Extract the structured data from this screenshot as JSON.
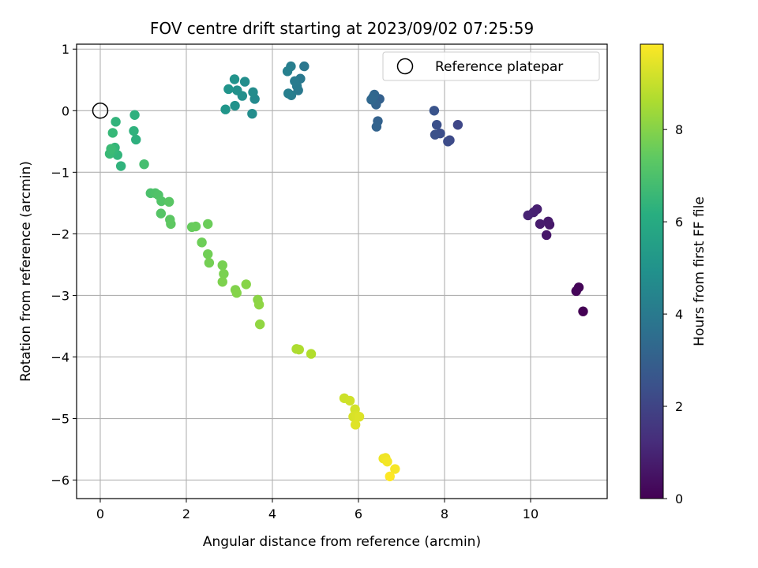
{
  "chart_data": {
    "type": "scatter",
    "title": "FOV centre drift starting at 2023/09/02 07:25:59",
    "xlabel": "Angular distance from reference (arcmin)",
    "ylabel": "Rotation from reference (arcmin)",
    "xlim": [
      -0.55,
      11.78
    ],
    "ylim": [
      -6.3,
      1.08
    ],
    "xticks": [
      0,
      2,
      4,
      6,
      8,
      10
    ],
    "yticks": [
      1,
      0,
      -1,
      -2,
      -3,
      -4,
      -5,
      -6
    ],
    "xtick_labels": [
      "0",
      "2",
      "4",
      "6",
      "8",
      "10"
    ],
    "ytick_labels": [
      "1",
      "0",
      "−1",
      "−2",
      "−3",
      "−4",
      "−5",
      "−6"
    ],
    "grid": true,
    "legend": {
      "position": "top-right",
      "entries": [
        "Reference platepar"
      ]
    },
    "reference_point": {
      "x": 0,
      "y": 0,
      "label": "Reference platepar"
    },
    "colorbar": {
      "label": "Hours from first FF file",
      "min": 0,
      "max": 9.85,
      "ticks": [
        0,
        2,
        4,
        6,
        8
      ],
      "colormap": "viridis"
    },
    "points": [
      {
        "x": 11.22,
        "y": -3.26,
        "c": 0.0
      },
      {
        "x": 11.12,
        "y": -2.87,
        "c": 0.1
      },
      {
        "x": 11.06,
        "y": -2.93,
        "c": 0.15
      },
      {
        "x": 10.37,
        "y": -2.02,
        "c": 0.6
      },
      {
        "x": 10.44,
        "y": -1.85,
        "c": 0.65
      },
      {
        "x": 10.41,
        "y": -1.8,
        "c": 0.7
      },
      {
        "x": 10.22,
        "y": -1.84,
        "c": 0.75
      },
      {
        "x": 10.15,
        "y": -1.6,
        "c": 0.85
      },
      {
        "x": 10.07,
        "y": -1.65,
        "c": 0.9
      },
      {
        "x": 9.94,
        "y": -1.7,
        "c": 0.95
      },
      {
        "x": 8.31,
        "y": -0.23,
        "c": 2.1
      },
      {
        "x": 8.12,
        "y": -0.48,
        "c": 2.2
      },
      {
        "x": 8.08,
        "y": -0.5,
        "c": 2.25
      },
      {
        "x": 7.9,
        "y": -0.37,
        "c": 2.35
      },
      {
        "x": 7.82,
        "y": -0.23,
        "c": 2.4
      },
      {
        "x": 7.78,
        "y": -0.39,
        "c": 2.45
      },
      {
        "x": 7.76,
        "y": 0.0,
        "c": 2.55
      },
      {
        "x": 6.49,
        "y": 0.19,
        "c": 3.0
      },
      {
        "x": 6.45,
        "y": -0.17,
        "c": 3.05
      },
      {
        "x": 6.42,
        "y": -0.26,
        "c": 3.1
      },
      {
        "x": 6.41,
        "y": 0.1,
        "c": 3.15
      },
      {
        "x": 6.37,
        "y": 0.26,
        "c": 3.2
      },
      {
        "x": 6.34,
        "y": 0.22,
        "c": 3.25
      },
      {
        "x": 6.3,
        "y": 0.18,
        "c": 3.3
      },
      {
        "x": 4.74,
        "y": 0.72,
        "c": 3.9
      },
      {
        "x": 4.65,
        "y": 0.52,
        "c": 3.95
      },
      {
        "x": 4.6,
        "y": 0.33,
        "c": 4.0
      },
      {
        "x": 4.57,
        "y": 0.4,
        "c": 4.05
      },
      {
        "x": 4.52,
        "y": 0.48,
        "c": 4.1
      },
      {
        "x": 4.44,
        "y": 0.25,
        "c": 4.15
      },
      {
        "x": 4.43,
        "y": 0.72,
        "c": 4.2
      },
      {
        "x": 4.37,
        "y": 0.28,
        "c": 4.25
      },
      {
        "x": 4.35,
        "y": 0.64,
        "c": 4.3
      },
      {
        "x": 3.59,
        "y": 0.19,
        "c": 4.7
      },
      {
        "x": 3.55,
        "y": 0.3,
        "c": 4.75
      },
      {
        "x": 3.53,
        "y": -0.05,
        "c": 4.8
      },
      {
        "x": 3.36,
        "y": 0.47,
        "c": 4.85
      },
      {
        "x": 3.3,
        "y": 0.24,
        "c": 4.9
      },
      {
        "x": 3.18,
        "y": 0.33,
        "c": 4.95
      },
      {
        "x": 3.13,
        "y": 0.08,
        "c": 5.0
      },
      {
        "x": 3.12,
        "y": 0.51,
        "c": 5.05
      },
      {
        "x": 2.98,
        "y": 0.35,
        "c": 5.1
      },
      {
        "x": 2.91,
        "y": 0.02,
        "c": 5.15
      },
      {
        "x": 0.83,
        "y": -0.47,
        "c": 6.2
      },
      {
        "x": 0.8,
        "y": -0.07,
        "c": 6.25
      },
      {
        "x": 0.78,
        "y": -0.33,
        "c": 6.3
      },
      {
        "x": 0.48,
        "y": -0.9,
        "c": 6.35
      },
      {
        "x": 0.36,
        "y": -0.18,
        "c": 6.4
      },
      {
        "x": 0.4,
        "y": -0.72,
        "c": 6.45
      },
      {
        "x": 0.34,
        "y": -0.6,
        "c": 6.5
      },
      {
        "x": 0.3,
        "y": -0.65,
        "c": 6.55
      },
      {
        "x": 0.29,
        "y": -0.36,
        "c": 6.6
      },
      {
        "x": 0.22,
        "y": -0.7,
        "c": 6.65
      },
      {
        "x": 0.25,
        "y": -0.62,
        "c": 6.7
      },
      {
        "x": 1.02,
        "y": -0.87,
        "c": 6.9
      },
      {
        "x": 1.17,
        "y": -1.34,
        "c": 7.0
      },
      {
        "x": 1.28,
        "y": -1.34,
        "c": 7.05
      },
      {
        "x": 1.35,
        "y": -1.37,
        "c": 7.1
      },
      {
        "x": 1.42,
        "y": -1.47,
        "c": 7.15
      },
      {
        "x": 1.41,
        "y": -1.67,
        "c": 7.2
      },
      {
        "x": 1.6,
        "y": -1.48,
        "c": 7.25
      },
      {
        "x": 1.62,
        "y": -1.77,
        "c": 7.3
      },
      {
        "x": 1.64,
        "y": -1.84,
        "c": 7.35
      },
      {
        "x": 2.13,
        "y": -1.89,
        "c": 7.5
      },
      {
        "x": 2.22,
        "y": -1.88,
        "c": 7.55
      },
      {
        "x": 2.5,
        "y": -1.84,
        "c": 7.6
      },
      {
        "x": 2.36,
        "y": -2.14,
        "c": 7.65
      },
      {
        "x": 2.5,
        "y": -2.33,
        "c": 7.7
      },
      {
        "x": 2.53,
        "y": -2.47,
        "c": 7.75
      },
      {
        "x": 2.84,
        "y": -2.51,
        "c": 7.8
      },
      {
        "x": 2.87,
        "y": -2.65,
        "c": 7.85
      },
      {
        "x": 2.84,
        "y": -2.78,
        "c": 7.9
      },
      {
        "x": 3.14,
        "y": -2.91,
        "c": 7.95
      },
      {
        "x": 3.17,
        "y": -2.96,
        "c": 8.0
      },
      {
        "x": 3.39,
        "y": -2.82,
        "c": 8.05
      },
      {
        "x": 3.66,
        "y": -3.07,
        "c": 8.1
      },
      {
        "x": 3.69,
        "y": -3.15,
        "c": 8.15
      },
      {
        "x": 3.71,
        "y": -3.47,
        "c": 8.2
      },
      {
        "x": 4.56,
        "y": -3.87,
        "c": 8.6
      },
      {
        "x": 4.62,
        "y": -3.88,
        "c": 8.65
      },
      {
        "x": 4.9,
        "y": -3.95,
        "c": 8.7
      },
      {
        "x": 5.67,
        "y": -4.67,
        "c": 9.1
      },
      {
        "x": 5.8,
        "y": -4.71,
        "c": 9.15
      },
      {
        "x": 5.92,
        "y": -4.85,
        "c": 9.2
      },
      {
        "x": 5.88,
        "y": -4.97,
        "c": 9.25
      },
      {
        "x": 5.95,
        "y": -4.95,
        "c": 9.3
      },
      {
        "x": 6.02,
        "y": -4.97,
        "c": 9.35
      },
      {
        "x": 5.93,
        "y": -5.1,
        "c": 9.4
      },
      {
        "x": 6.58,
        "y": -5.65,
        "c": 9.6
      },
      {
        "x": 6.63,
        "y": -5.64,
        "c": 9.65
      },
      {
        "x": 6.67,
        "y": -5.7,
        "c": 9.7
      },
      {
        "x": 6.85,
        "y": -5.82,
        "c": 9.75
      },
      {
        "x": 6.73,
        "y": -5.94,
        "c": 9.85
      }
    ]
  }
}
